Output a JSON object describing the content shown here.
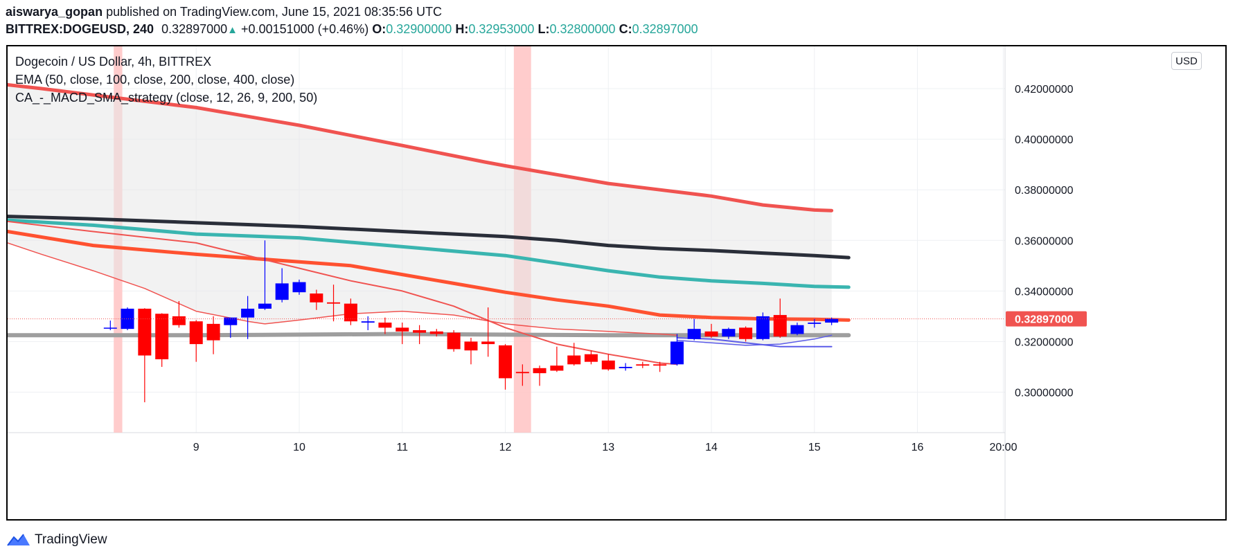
{
  "header": {
    "author": "aiswarya_gopan",
    "published_text": " published on TradingView.com, June 15, 2021 08:35:56 UTC",
    "symbol": "BITTREX:DOGEUSD, 240",
    "last_price": "0.32897000",
    "change": "+0.00151000 (+0.46%)",
    "ohlc": [
      {
        "label": "O:",
        "value": "0.32900000"
      },
      {
        "label": "H:",
        "value": "0.32953000"
      },
      {
        "label": "L:",
        "value": "0.32800000"
      },
      {
        "label": "C:",
        "value": "0.32897000"
      }
    ]
  },
  "legend": {
    "title": "Dogecoin / US Dollar, 4h, BITTREX",
    "ema": "EMA (50, close, 100, close, 200, close, 400, close)",
    "strategy": "CA_-_MACD_SMA_strategy (close, 12, 26, 9, 200, 50)"
  },
  "currency_button": "USD",
  "price_tag": "0.32897000",
  "footer": {
    "brand": "TradingView",
    "logo_icon": "tradingview-logo-icon"
  },
  "colors": {
    "up_candle": "#0000ff",
    "down_candle": "#ff0000",
    "ema_400": "#f05350",
    "ema_200": "#2a2e39",
    "ema_100": "#3ab5b0",
    "ema_50": "#ff5130",
    "price_tag": "#f05350",
    "highlight": "#ffc7c7",
    "teal_text": "#26a69a"
  },
  "chart_data": {
    "type": "candlestick",
    "x_ticks": [
      "9",
      "10",
      "11",
      "12",
      "13",
      "14",
      "15",
      "16",
      "20:00"
    ],
    "y_ticks": [
      "0.42000000",
      "0.40000000",
      "0.38000000",
      "0.36000000",
      "0.34000000",
      "0.32000000",
      "0.30000000"
    ],
    "ylim": [
      0.284,
      0.4367
    ],
    "x_range_days": [
      7.17,
      16.85
    ],
    "highlight_bands": [
      {
        "from": 8.2,
        "to": 8.283
      },
      {
        "from": 12.083,
        "to": 12.25
      }
    ],
    "candles": [
      {
        "t": 8.167,
        "o": 0.3255,
        "h": 0.3283,
        "l": 0.3245,
        "c": 0.3255
      },
      {
        "t": 8.333,
        "o": 0.325,
        "h": 0.3335,
        "l": 0.3245,
        "c": 0.333
      },
      {
        "t": 8.5,
        "o": 0.333,
        "h": 0.3332,
        "l": 0.296,
        "c": 0.3145
      },
      {
        "t": 8.667,
        "o": 0.331,
        "h": 0.3312,
        "l": 0.31,
        "c": 0.313
      },
      {
        "t": 8.833,
        "o": 0.33,
        "h": 0.336,
        "l": 0.3255,
        "c": 0.3265
      },
      {
        "t": 9.0,
        "o": 0.328,
        "h": 0.3285,
        "l": 0.312,
        "c": 0.319
      },
      {
        "t": 9.167,
        "o": 0.327,
        "h": 0.33,
        "l": 0.315,
        "c": 0.3205
      },
      {
        "t": 9.333,
        "o": 0.3265,
        "h": 0.3292,
        "l": 0.3215,
        "c": 0.3295
      },
      {
        "t": 9.5,
        "o": 0.3295,
        "h": 0.338,
        "l": 0.321,
        "c": 0.333
      },
      {
        "t": 9.667,
        "o": 0.333,
        "h": 0.36,
        "l": 0.3325,
        "c": 0.335
      },
      {
        "t": 9.833,
        "o": 0.3365,
        "h": 0.349,
        "l": 0.3355,
        "c": 0.343
      },
      {
        "t": 10.0,
        "o": 0.3395,
        "h": 0.3445,
        "l": 0.3385,
        "c": 0.3435
      },
      {
        "t": 10.167,
        "o": 0.339,
        "h": 0.3405,
        "l": 0.3325,
        "c": 0.3355
      },
      {
        "t": 10.333,
        "o": 0.3355,
        "h": 0.3425,
        "l": 0.328,
        "c": 0.335
      },
      {
        "t": 10.5,
        "o": 0.335,
        "h": 0.337,
        "l": 0.3265,
        "c": 0.328
      },
      {
        "t": 10.667,
        "o": 0.3275,
        "h": 0.33,
        "l": 0.3245,
        "c": 0.328
      },
      {
        "t": 10.833,
        "o": 0.3275,
        "h": 0.3295,
        "l": 0.323,
        "c": 0.3255
      },
      {
        "t": 11.0,
        "o": 0.3255,
        "h": 0.3275,
        "l": 0.319,
        "c": 0.324
      },
      {
        "t": 11.167,
        "o": 0.3245,
        "h": 0.3265,
        "l": 0.319,
        "c": 0.3235
      },
      {
        "t": 11.333,
        "o": 0.324,
        "h": 0.325,
        "l": 0.322,
        "c": 0.323
      },
      {
        "t": 11.5,
        "o": 0.3235,
        "h": 0.3245,
        "l": 0.316,
        "c": 0.317
      },
      {
        "t": 11.667,
        "o": 0.32,
        "h": 0.3215,
        "l": 0.311,
        "c": 0.3165
      },
      {
        "t": 11.833,
        "o": 0.32,
        "h": 0.3335,
        "l": 0.314,
        "c": 0.319
      },
      {
        "t": 12.0,
        "o": 0.3185,
        "h": 0.319,
        "l": 0.301,
        "c": 0.3055
      },
      {
        "t": 12.167,
        "o": 0.308,
        "h": 0.311,
        "l": 0.3025,
        "c": 0.3075
      },
      {
        "t": 12.333,
        "o": 0.3095,
        "h": 0.3105,
        "l": 0.3025,
        "c": 0.3075
      },
      {
        "t": 12.5,
        "o": 0.3105,
        "h": 0.318,
        "l": 0.308,
        "c": 0.3085
      },
      {
        "t": 12.667,
        "o": 0.3145,
        "h": 0.3195,
        "l": 0.3105,
        "c": 0.311
      },
      {
        "t": 12.833,
        "o": 0.315,
        "h": 0.3165,
        "l": 0.311,
        "c": 0.312
      },
      {
        "t": 13.0,
        "o": 0.3125,
        "h": 0.315,
        "l": 0.3085,
        "c": 0.309
      },
      {
        "t": 13.167,
        "o": 0.3095,
        "h": 0.3115,
        "l": 0.3085,
        "c": 0.31
      },
      {
        "t": 13.333,
        "o": 0.311,
        "h": 0.312,
        "l": 0.3095,
        "c": 0.3105
      },
      {
        "t": 13.5,
        "o": 0.311,
        "h": 0.312,
        "l": 0.308,
        "c": 0.3105
      },
      {
        "t": 13.667,
        "o": 0.311,
        "h": 0.323,
        "l": 0.3105,
        "c": 0.32
      },
      {
        "t": 13.833,
        "o": 0.321,
        "h": 0.329,
        "l": 0.3205,
        "c": 0.325
      },
      {
        "t": 14.0,
        "o": 0.324,
        "h": 0.327,
        "l": 0.3215,
        "c": 0.322
      },
      {
        "t": 14.167,
        "o": 0.322,
        "h": 0.3255,
        "l": 0.321,
        "c": 0.325
      },
      {
        "t": 14.333,
        "o": 0.3255,
        "h": 0.326,
        "l": 0.32,
        "c": 0.321
      },
      {
        "t": 14.5,
        "o": 0.321,
        "h": 0.3315,
        "l": 0.3205,
        "c": 0.33
      },
      {
        "t": 14.667,
        "o": 0.3305,
        "h": 0.337,
        "l": 0.3215,
        "c": 0.322
      },
      {
        "t": 14.833,
        "o": 0.323,
        "h": 0.3275,
        "l": 0.3225,
        "c": 0.3265
      },
      {
        "t": 15.0,
        "o": 0.327,
        "h": 0.329,
        "l": 0.3255,
        "c": 0.3275
      },
      {
        "t": 15.167,
        "o": 0.3275,
        "h": 0.3295,
        "l": 0.3265,
        "c": 0.329
      }
    ],
    "lines": [
      {
        "name": "EMA 400",
        "color": "#f05350",
        "width": 5,
        "points": [
          [
            7.17,
            0.4215
          ],
          [
            7.5,
            0.42
          ],
          [
            8,
            0.4175
          ],
          [
            9,
            0.4125
          ],
          [
            10,
            0.4055
          ],
          [
            11,
            0.3975
          ],
          [
            11.8,
            0.391
          ],
          [
            12,
            0.3895
          ],
          [
            12.5,
            0.386
          ],
          [
            13,
            0.3825
          ],
          [
            13.5,
            0.38
          ],
          [
            14,
            0.3775
          ],
          [
            14.5,
            0.374
          ],
          [
            15,
            0.372
          ],
          [
            15.167,
            0.3718
          ]
        ]
      },
      {
        "name": "EMA 200",
        "color": "#2a2e39",
        "width": 5,
        "points": [
          [
            7.17,
            0.3695
          ],
          [
            8,
            0.3685
          ],
          [
            9,
            0.367
          ],
          [
            10,
            0.3655
          ],
          [
            11,
            0.3635
          ],
          [
            12,
            0.3615
          ],
          [
            12.5,
            0.36
          ],
          [
            13,
            0.358
          ],
          [
            13.5,
            0.3568
          ],
          [
            14,
            0.356
          ],
          [
            14.5,
            0.355
          ],
          [
            15,
            0.354
          ],
          [
            15.333,
            0.3532
          ]
        ]
      },
      {
        "name": "EMA 100",
        "color": "#3ab5b0",
        "width": 5,
        "points": [
          [
            7.17,
            0.368
          ],
          [
            8,
            0.366
          ],
          [
            9,
            0.3625
          ],
          [
            10,
            0.361
          ],
          [
            11,
            0.3575
          ],
          [
            12,
            0.354
          ],
          [
            12.5,
            0.351
          ],
          [
            13,
            0.348
          ],
          [
            13.5,
            0.3455
          ],
          [
            14,
            0.344
          ],
          [
            14.5,
            0.343
          ],
          [
            15,
            0.3418
          ],
          [
            15.333,
            0.3415
          ]
        ]
      },
      {
        "name": "EMA 50",
        "color": "#ff5130",
        "width": 5,
        "points": [
          [
            7.17,
            0.3635
          ],
          [
            8,
            0.358
          ],
          [
            9,
            0.3545
          ],
          [
            10,
            0.3515
          ],
          [
            10.5,
            0.35
          ],
          [
            11,
            0.3465
          ],
          [
            11.5,
            0.343
          ],
          [
            12,
            0.3395
          ],
          [
            12.5,
            0.3365
          ],
          [
            13,
            0.334
          ],
          [
            13.5,
            0.3305
          ],
          [
            14,
            0.3295
          ],
          [
            14.5,
            0.329
          ],
          [
            15,
            0.3288
          ],
          [
            15.333,
            0.3285
          ]
        ]
      },
      {
        "name": "SMA gray",
        "color": "#9e9e9e",
        "width": 6,
        "points": [
          [
            7.17,
            0.3225
          ],
          [
            9,
            0.3225
          ],
          [
            11,
            0.323
          ],
          [
            13,
            0.3225
          ],
          [
            15.333,
            0.3225
          ]
        ]
      },
      {
        "name": "Fast red",
        "color": "#f05350",
        "width": 2,
        "points": [
          [
            7.17,
            0.3675
          ],
          [
            8,
            0.3635
          ],
          [
            9,
            0.359
          ],
          [
            10,
            0.349
          ],
          [
            10.5,
            0.344
          ],
          [
            11,
            0.34
          ],
          [
            11.5,
            0.334
          ],
          [
            12,
            0.3255
          ],
          [
            12.5,
            0.319
          ],
          [
            13,
            0.315
          ],
          [
            13.5,
            0.3115
          ],
          [
            13.667,
            0.311
          ]
        ]
      },
      {
        "name": "MACD red",
        "color": "#f05350",
        "width": 1.5,
        "points": [
          [
            7.17,
            0.359
          ],
          [
            7.5,
            0.3545
          ],
          [
            8,
            0.348
          ],
          [
            8.5,
            0.341
          ],
          [
            9,
            0.332
          ],
          [
            9.5,
            0.328
          ],
          [
            9.667,
            0.327
          ],
          [
            10,
            0.3285
          ],
          [
            10.5,
            0.331
          ],
          [
            11,
            0.332
          ],
          [
            11.5,
            0.3305
          ],
          [
            12,
            0.327
          ],
          [
            12.5,
            0.325
          ],
          [
            13,
            0.324
          ],
          [
            13.5,
            0.323
          ],
          [
            13.667,
            0.3225
          ]
        ]
      },
      {
        "name": "Signal blue",
        "color": "#5b5be8",
        "width": 2,
        "points": [
          [
            13.667,
            0.3215
          ],
          [
            14,
            0.321
          ],
          [
            14.333,
            0.3195
          ],
          [
            14.667,
            0.318
          ],
          [
            15,
            0.318
          ],
          [
            15.167,
            0.318
          ]
        ]
      },
      {
        "name": "Signal blue 2",
        "color": "#5b5be8",
        "width": 1.5,
        "points": [
          [
            13.667,
            0.3205
          ],
          [
            14,
            0.3195
          ],
          [
            14.333,
            0.3185
          ],
          [
            14.667,
            0.319
          ],
          [
            15,
            0.321
          ],
          [
            15.167,
            0.3225
          ]
        ]
      }
    ]
  }
}
